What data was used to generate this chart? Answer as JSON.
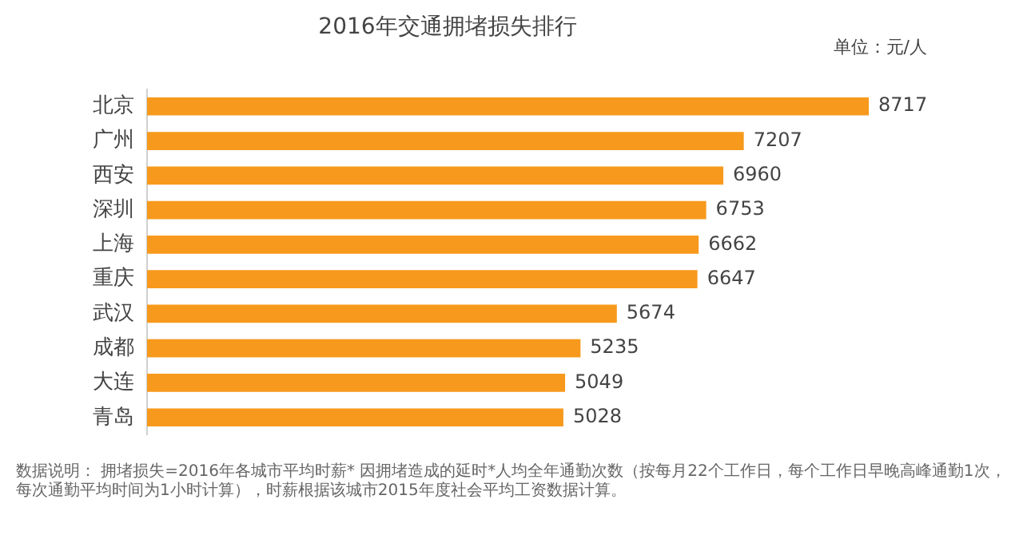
{
  "chart_data": {
    "type": "bar",
    "orientation": "horizontal",
    "title": "2016年交通拥堵损失排行",
    "categories": [
      "北京",
      "广州",
      "西安",
      "深圳",
      "上海",
      "重庆",
      "武汉",
      "成都",
      "大连",
      "青岛"
    ],
    "values": [
      8717,
      7207,
      6960,
      6753,
      6662,
      6647,
      5674,
      5235,
      5049,
      5028
    ],
    "color": "#f7991c",
    "tick_labels": "y",
    "grid": false,
    "data_labels": true,
    "annotations": [
      "单位：元/人",
      "数据说明： 拥堵损失=2016年各城市平均时薪* 因拥堵造成的延时*人均全年通勤次数（按每月22个工作日，每个工作日早晚高峰通勤1次，每次通勤平均时间为1小时计算），时薪根据该城市2015年度社会平均工资数据计算。"
    ]
  }
}
